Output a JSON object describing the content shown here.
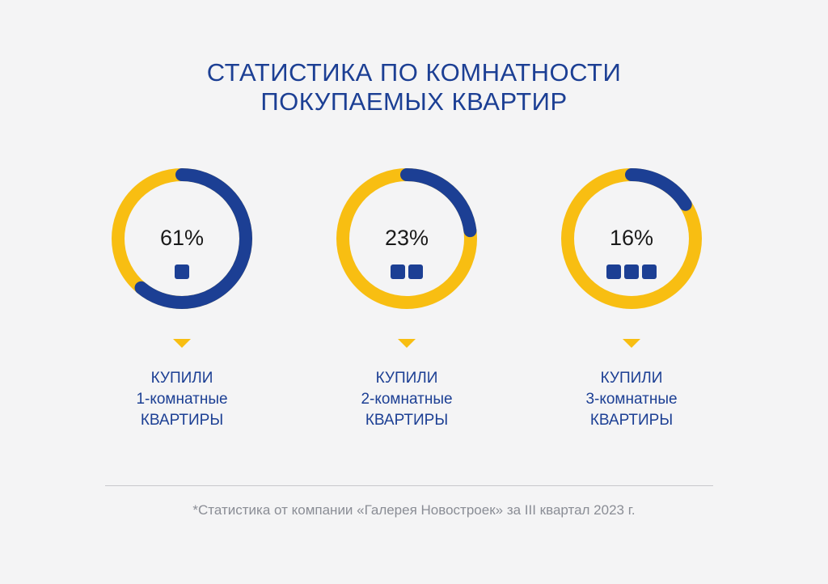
{
  "title_line1": "СТАТИСТИКА ПО КОМНАТНОСТИ",
  "title_line2": "ПОКУПАЕМЫХ КВАРТИР",
  "colors": {
    "primary": "#1c3f94",
    "accent": "#f8be12",
    "background": "#f4f4f5"
  },
  "chart_data": {
    "type": "pie",
    "style": "donut",
    "categories": [
      "1-комнатные",
      "2-комнатные",
      "3-комнатные"
    ],
    "values": [
      61,
      23,
      16
    ],
    "items": [
      {
        "percent": 61,
        "label": "61%",
        "rooms": 1,
        "caption_line1": "КУПИЛИ",
        "caption_line2": "1-комнатные",
        "caption_line3": "КВАРТИРЫ"
      },
      {
        "percent": 23,
        "label": "23%",
        "rooms": 2,
        "caption_line1": "КУПИЛИ",
        "caption_line2": "2-комнатные",
        "caption_line3": "КВАРТИРЫ"
      },
      {
        "percent": 16,
        "label": "16%",
        "rooms": 3,
        "caption_line1": "КУПИЛИ",
        "caption_line2": "3-комнатные",
        "caption_line3": "КВАРТИРЫ"
      }
    ]
  },
  "footnote": "*Статистика от компании «Галерея Новостроек» за III квартал 2023 г."
}
